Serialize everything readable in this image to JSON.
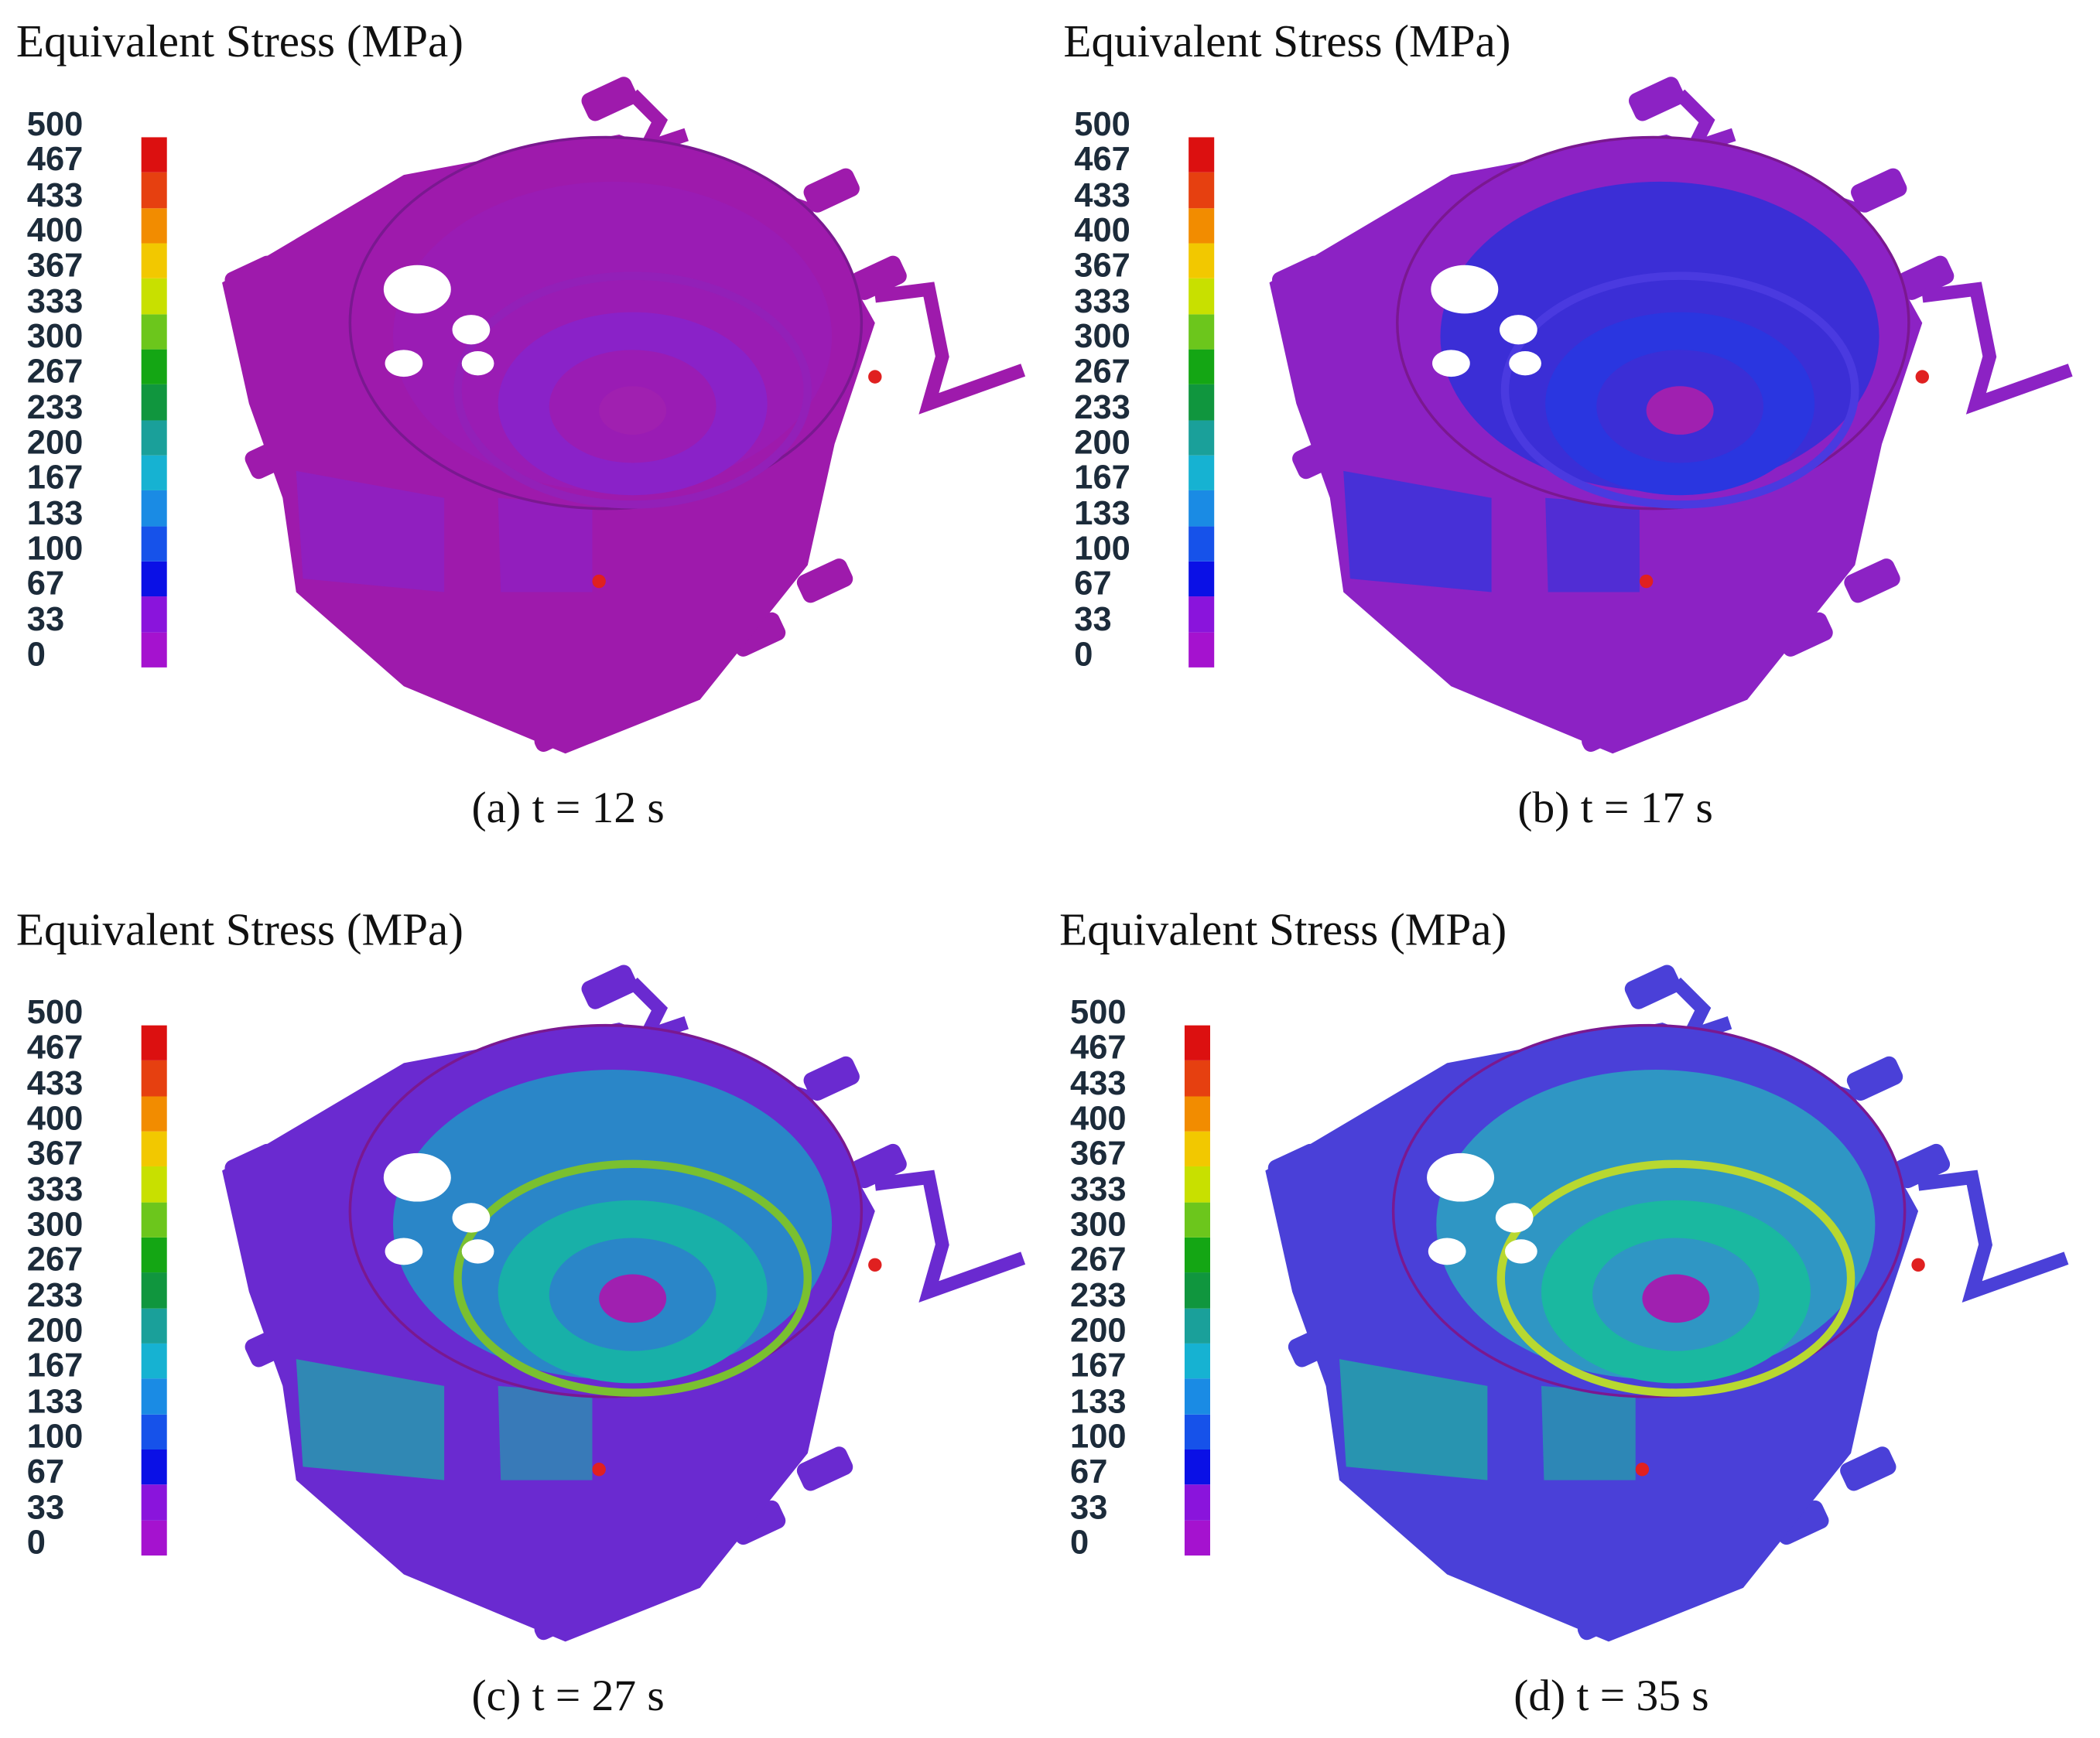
{
  "legend": {
    "title": "Equivalent Stress (MPa)",
    "ticks": [
      0,
      33,
      67,
      100,
      133,
      167,
      200,
      233,
      267,
      300,
      333,
      367,
      400,
      433,
      467,
      500
    ],
    "colors": [
      "#b40fbf",
      "#a512cf",
      "#8a14dc",
      "#0a10e6",
      "#1652ea",
      "#1a8be4",
      "#16b2d2",
      "#1aa09a",
      "#10963e",
      "#14a614",
      "#6cc61c",
      "#c8e000",
      "#f2c800",
      "#f28c00",
      "#e64010",
      "#dc1010"
    ]
  },
  "panels": [
    {
      "caption": "(a) t = 12 s"
    },
    {
      "caption": "(b) t = 17 s"
    },
    {
      "caption": "(c) t = 27 s"
    },
    {
      "caption": "(d) t = 35 s"
    }
  ]
}
